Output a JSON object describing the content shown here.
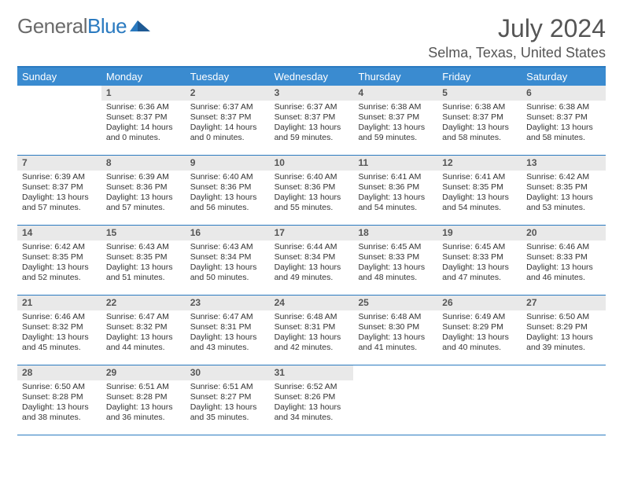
{
  "brand": {
    "part1": "General",
    "part2": "Blue"
  },
  "title": {
    "month": "July 2024",
    "location": "Selma, Texas, United States"
  },
  "colors": {
    "header_blue": "#3a8bd0",
    "rule_blue": "#2a7ac0",
    "daynum_bg": "#e9e9e9",
    "text": "#333333",
    "muted": "#555555",
    "logo_gray": "#6b6b6b"
  },
  "dayHeaders": [
    "Sunday",
    "Monday",
    "Tuesday",
    "Wednesday",
    "Thursday",
    "Friday",
    "Saturday"
  ],
  "weeks": [
    [
      {
        "n": "",
        "empty": true
      },
      {
        "n": "1",
        "sr": "6:36 AM",
        "ss": "8:37 PM",
        "dl": "14 hours and 0 minutes."
      },
      {
        "n": "2",
        "sr": "6:37 AM",
        "ss": "8:37 PM",
        "dl": "14 hours and 0 minutes."
      },
      {
        "n": "3",
        "sr": "6:37 AM",
        "ss": "8:37 PM",
        "dl": "13 hours and 59 minutes."
      },
      {
        "n": "4",
        "sr": "6:38 AM",
        "ss": "8:37 PM",
        "dl": "13 hours and 59 minutes."
      },
      {
        "n": "5",
        "sr": "6:38 AM",
        "ss": "8:37 PM",
        "dl": "13 hours and 58 minutes."
      },
      {
        "n": "6",
        "sr": "6:38 AM",
        "ss": "8:37 PM",
        "dl": "13 hours and 58 minutes."
      }
    ],
    [
      {
        "n": "7",
        "sr": "6:39 AM",
        "ss": "8:37 PM",
        "dl": "13 hours and 57 minutes."
      },
      {
        "n": "8",
        "sr": "6:39 AM",
        "ss": "8:36 PM",
        "dl": "13 hours and 57 minutes."
      },
      {
        "n": "9",
        "sr": "6:40 AM",
        "ss": "8:36 PM",
        "dl": "13 hours and 56 minutes."
      },
      {
        "n": "10",
        "sr": "6:40 AM",
        "ss": "8:36 PM",
        "dl": "13 hours and 55 minutes."
      },
      {
        "n": "11",
        "sr": "6:41 AM",
        "ss": "8:36 PM",
        "dl": "13 hours and 54 minutes."
      },
      {
        "n": "12",
        "sr": "6:41 AM",
        "ss": "8:35 PM",
        "dl": "13 hours and 54 minutes."
      },
      {
        "n": "13",
        "sr": "6:42 AM",
        "ss": "8:35 PM",
        "dl": "13 hours and 53 minutes."
      }
    ],
    [
      {
        "n": "14",
        "sr": "6:42 AM",
        "ss": "8:35 PM",
        "dl": "13 hours and 52 minutes."
      },
      {
        "n": "15",
        "sr": "6:43 AM",
        "ss": "8:35 PM",
        "dl": "13 hours and 51 minutes."
      },
      {
        "n": "16",
        "sr": "6:43 AM",
        "ss": "8:34 PM",
        "dl": "13 hours and 50 minutes."
      },
      {
        "n": "17",
        "sr": "6:44 AM",
        "ss": "8:34 PM",
        "dl": "13 hours and 49 minutes."
      },
      {
        "n": "18",
        "sr": "6:45 AM",
        "ss": "8:33 PM",
        "dl": "13 hours and 48 minutes."
      },
      {
        "n": "19",
        "sr": "6:45 AM",
        "ss": "8:33 PM",
        "dl": "13 hours and 47 minutes."
      },
      {
        "n": "20",
        "sr": "6:46 AM",
        "ss": "8:33 PM",
        "dl": "13 hours and 46 minutes."
      }
    ],
    [
      {
        "n": "21",
        "sr": "6:46 AM",
        "ss": "8:32 PM",
        "dl": "13 hours and 45 minutes."
      },
      {
        "n": "22",
        "sr": "6:47 AM",
        "ss": "8:32 PM",
        "dl": "13 hours and 44 minutes."
      },
      {
        "n": "23",
        "sr": "6:47 AM",
        "ss": "8:31 PM",
        "dl": "13 hours and 43 minutes."
      },
      {
        "n": "24",
        "sr": "6:48 AM",
        "ss": "8:31 PM",
        "dl": "13 hours and 42 minutes."
      },
      {
        "n": "25",
        "sr": "6:48 AM",
        "ss": "8:30 PM",
        "dl": "13 hours and 41 minutes."
      },
      {
        "n": "26",
        "sr": "6:49 AM",
        "ss": "8:29 PM",
        "dl": "13 hours and 40 minutes."
      },
      {
        "n": "27",
        "sr": "6:50 AM",
        "ss": "8:29 PM",
        "dl": "13 hours and 39 minutes."
      }
    ],
    [
      {
        "n": "28",
        "sr": "6:50 AM",
        "ss": "8:28 PM",
        "dl": "13 hours and 38 minutes."
      },
      {
        "n": "29",
        "sr": "6:51 AM",
        "ss": "8:28 PM",
        "dl": "13 hours and 36 minutes."
      },
      {
        "n": "30",
        "sr": "6:51 AM",
        "ss": "8:27 PM",
        "dl": "13 hours and 35 minutes."
      },
      {
        "n": "31",
        "sr": "6:52 AM",
        "ss": "8:26 PM",
        "dl": "13 hours and 34 minutes."
      },
      {
        "n": "",
        "empty": true
      },
      {
        "n": "",
        "empty": true
      },
      {
        "n": "",
        "empty": true
      }
    ]
  ],
  "labels": {
    "sunrise": "Sunrise: ",
    "sunset": "Sunset: ",
    "daylight": "Daylight: "
  }
}
